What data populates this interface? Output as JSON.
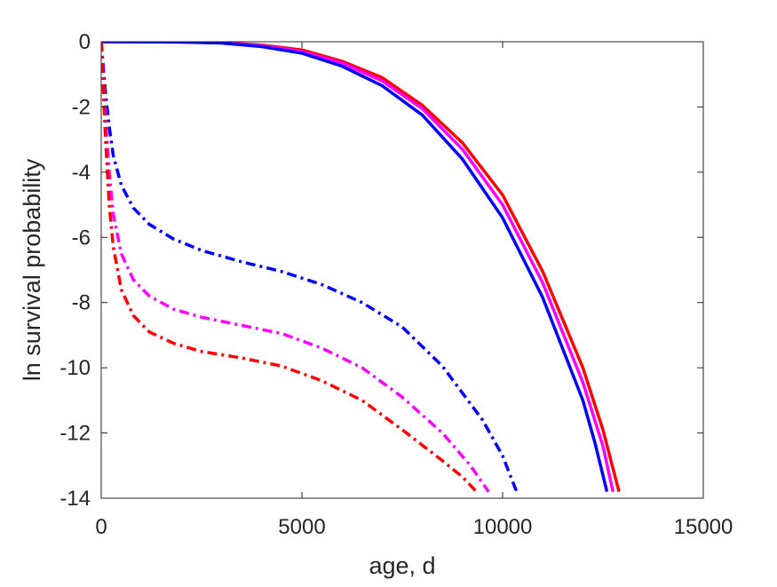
{
  "chart_data": {
    "type": "line",
    "title": "",
    "xlabel": "age, d",
    "ylabel": "ln survival probability",
    "xlim": [
      0,
      15000
    ],
    "ylim": [
      -14,
      0
    ],
    "xticks": [
      0,
      5000,
      10000,
      15000
    ],
    "yticks": [
      0,
      -2,
      -4,
      -6,
      -8,
      -10,
      -12,
      -14
    ],
    "xtick_labels": [
      "0",
      "5000",
      "10000",
      "15000"
    ],
    "ytick_labels": [
      "0",
      "-2",
      "-4",
      "-6",
      "-8",
      "-10",
      "-12",
      "-14"
    ],
    "grid": false,
    "legend": "none",
    "series": [
      {
        "color": "#ff0000",
        "style": "solid",
        "points": [
          [
            0,
            0
          ],
          [
            2000,
            -0.01
          ],
          [
            3000,
            -0.03
          ],
          [
            4000,
            -0.1
          ],
          [
            5000,
            -0.25
          ],
          [
            6000,
            -0.6
          ],
          [
            7000,
            -1.1
          ],
          [
            8000,
            -1.95
          ],
          [
            9000,
            -3.1
          ],
          [
            10000,
            -4.7
          ],
          [
            11000,
            -7.05
          ],
          [
            12000,
            -10.0
          ],
          [
            12500,
            -11.9
          ],
          [
            12900,
            -13.8
          ]
        ]
      },
      {
        "color": "#ff00ff",
        "style": "solid",
        "points": [
          [
            0,
            0
          ],
          [
            2000,
            -0.01
          ],
          [
            3000,
            -0.03
          ],
          [
            4000,
            -0.12
          ],
          [
            5000,
            -0.3
          ],
          [
            6000,
            -0.65
          ],
          [
            7000,
            -1.2
          ],
          [
            8000,
            -2.05
          ],
          [
            9000,
            -3.3
          ],
          [
            10000,
            -5.0
          ],
          [
            11000,
            -7.4
          ],
          [
            12000,
            -10.45
          ],
          [
            12500,
            -12.4
          ],
          [
            12750,
            -13.8
          ]
        ]
      },
      {
        "color": "#0000ff",
        "style": "solid",
        "points": [
          [
            0,
            0
          ],
          [
            2000,
            -0.01
          ],
          [
            3000,
            -0.04
          ],
          [
            4000,
            -0.15
          ],
          [
            5000,
            -0.35
          ],
          [
            6000,
            -0.75
          ],
          [
            7000,
            -1.35
          ],
          [
            8000,
            -2.25
          ],
          [
            9000,
            -3.6
          ],
          [
            10000,
            -5.4
          ],
          [
            11000,
            -7.85
          ],
          [
            12000,
            -11.0
          ],
          [
            12300,
            -12.3
          ],
          [
            12600,
            -13.8
          ]
        ]
      },
      {
        "color": "#0000ff",
        "style": "dashdot",
        "points": [
          [
            0,
            0
          ],
          [
            100,
            -1.5
          ],
          [
            200,
            -2.6
          ],
          [
            300,
            -3.5
          ],
          [
            500,
            -4.4
          ],
          [
            800,
            -5.1
          ],
          [
            1200,
            -5.6
          ],
          [
            1800,
            -6.05
          ],
          [
            2500,
            -6.4
          ],
          [
            3500,
            -6.75
          ],
          [
            4500,
            -7.05
          ],
          [
            5500,
            -7.45
          ],
          [
            6500,
            -8.0
          ],
          [
            7500,
            -8.75
          ],
          [
            8500,
            -9.95
          ],
          [
            9500,
            -11.6
          ],
          [
            10000,
            -12.7
          ],
          [
            10350,
            -13.8
          ]
        ]
      },
      {
        "color": "#ff00ff",
        "style": "dashdot",
        "points": [
          [
            0,
            0
          ],
          [
            100,
            -2.2
          ],
          [
            200,
            -4.0
          ],
          [
            300,
            -5.3
          ],
          [
            500,
            -6.5
          ],
          [
            800,
            -7.3
          ],
          [
            1200,
            -7.8
          ],
          [
            1800,
            -8.2
          ],
          [
            2500,
            -8.45
          ],
          [
            3500,
            -8.7
          ],
          [
            4500,
            -8.95
          ],
          [
            5500,
            -9.4
          ],
          [
            6500,
            -10.0
          ],
          [
            7500,
            -10.9
          ],
          [
            8500,
            -12.0
          ],
          [
            9200,
            -13.0
          ],
          [
            9650,
            -13.8
          ]
        ]
      },
      {
        "color": "#ff0000",
        "style": "dashdot",
        "points": [
          [
            0,
            0
          ],
          [
            100,
            -2.8
          ],
          [
            200,
            -5.0
          ],
          [
            300,
            -6.3
          ],
          [
            500,
            -7.6
          ],
          [
            800,
            -8.4
          ],
          [
            1200,
            -8.9
          ],
          [
            1800,
            -9.25
          ],
          [
            2500,
            -9.5
          ],
          [
            3500,
            -9.7
          ],
          [
            4500,
            -9.95
          ],
          [
            5500,
            -10.4
          ],
          [
            6500,
            -11.0
          ],
          [
            7500,
            -11.9
          ],
          [
            8500,
            -12.85
          ],
          [
            9000,
            -13.35
          ],
          [
            9350,
            -13.8
          ]
        ]
      }
    ]
  }
}
